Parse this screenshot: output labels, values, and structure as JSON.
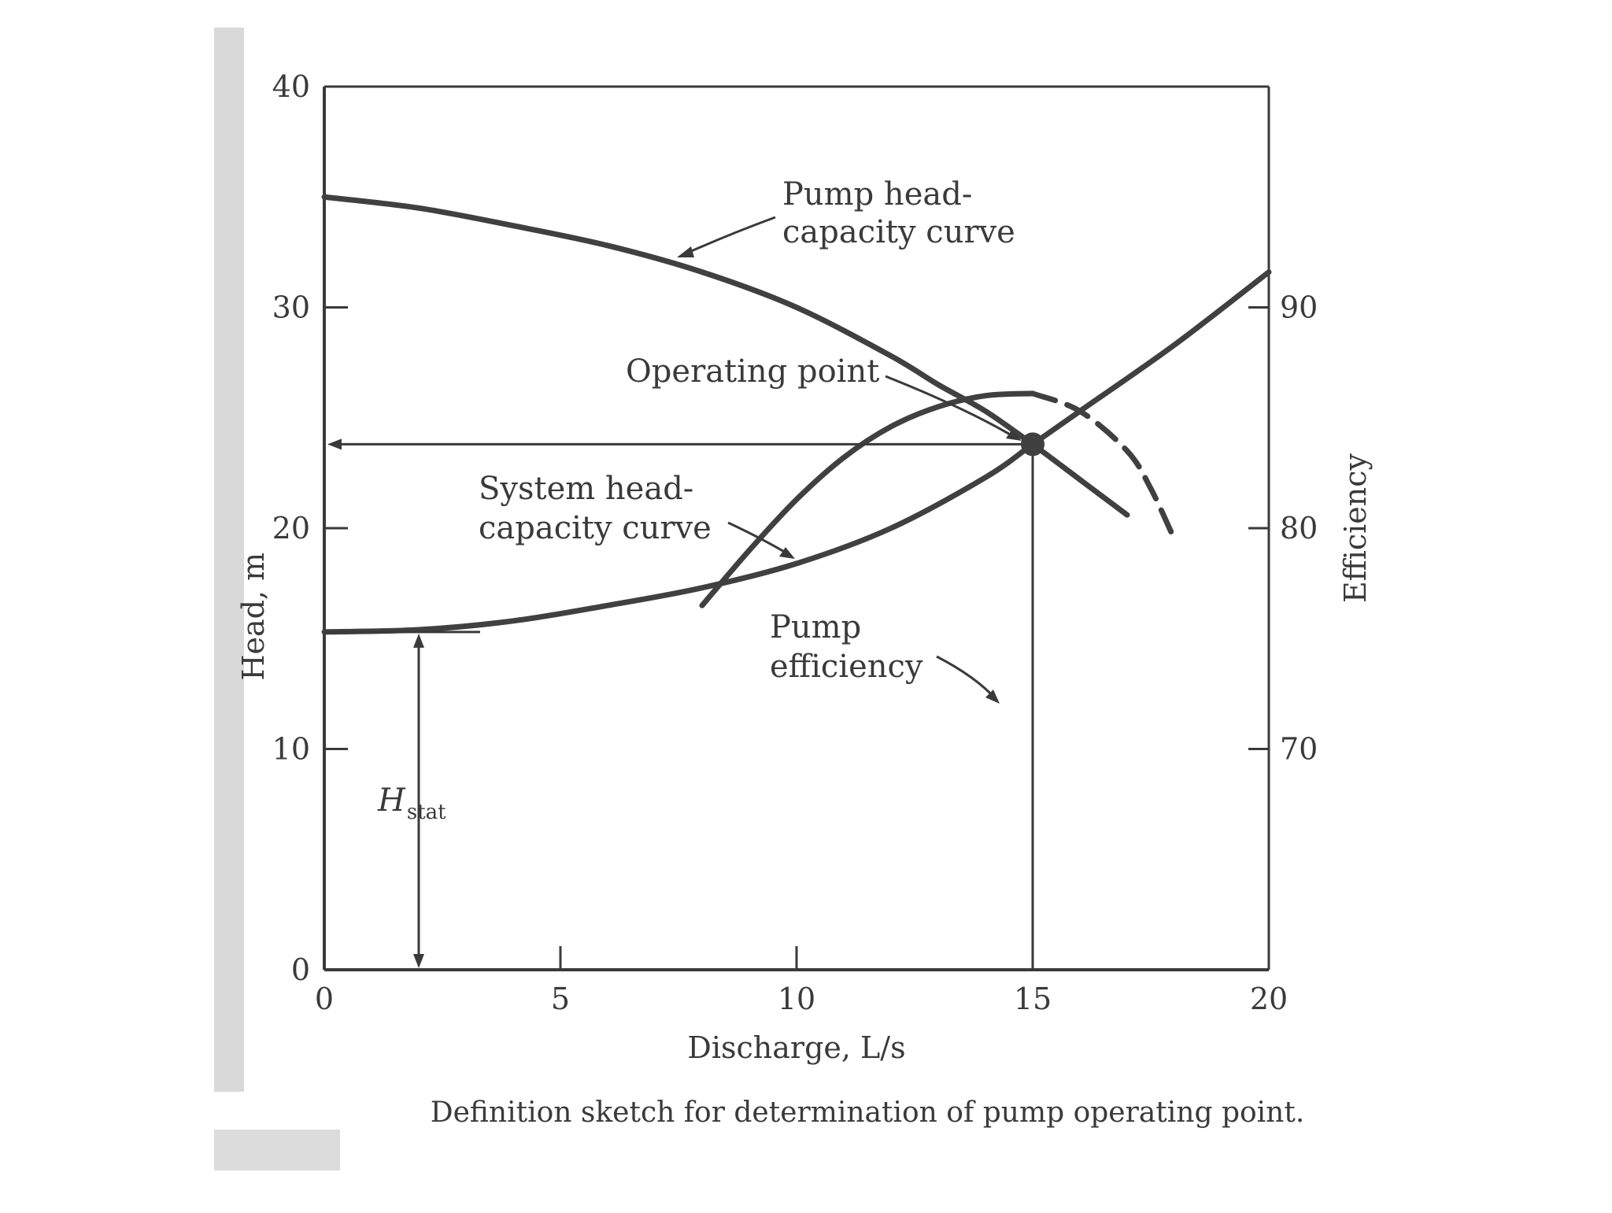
{
  "colors": {
    "ink": "#3a3a3a",
    "curve": "#404040",
    "page_shadow": "#d8d8d8",
    "background": "#ffffff"
  },
  "caption": "Definition sketch for determination of pump operating point.",
  "chart_data": {
    "type": "line",
    "xlabel": "Discharge, L/s",
    "ylabel": "Head, m",
    "y2label": "Efficiency",
    "xlim": [
      0,
      20
    ],
    "ylim": [
      0,
      40
    ],
    "y2lim": [
      60,
      100
    ],
    "x_ticks": [
      "0",
      "5",
      "10",
      "15",
      "20"
    ],
    "y_ticks": [
      "0",
      "10",
      "20",
      "30",
      "40"
    ],
    "y2_ticks": [
      "70",
      "80",
      "90"
    ],
    "grid": false,
    "series": [
      {
        "name": "Pump head-capacity curve",
        "axis": "left",
        "style": "solid",
        "x": [
          0,
          2,
          4,
          6,
          8,
          10,
          12,
          13,
          14,
          15,
          16,
          17
        ],
        "y": [
          35,
          34.5,
          33.7,
          32.8,
          31.6,
          30.0,
          27.8,
          26.5,
          25.3,
          23.8,
          22.2,
          20.6
        ]
      },
      {
        "name": "System head-capacity curve",
        "axis": "left",
        "style": "solid",
        "x": [
          0,
          2,
          4,
          6,
          8,
          10,
          12,
          14,
          15,
          16,
          18,
          20
        ],
        "y": [
          15.3,
          15.4,
          15.8,
          16.5,
          17.3,
          18.4,
          20.0,
          22.3,
          23.8,
          25.3,
          28.3,
          31.6
        ]
      },
      {
        "name": "Pump efficiency",
        "axis": "right",
        "style": "solid",
        "x": [
          8,
          9,
          10,
          11,
          12,
          13,
          14,
          15
        ],
        "y": [
          76.5,
          79.0,
          81.3,
          83.2,
          84.6,
          85.5,
          86.0,
          86.1
        ]
      },
      {
        "name": "Pump efficiency",
        "axis": "right",
        "style": "dashed",
        "x": [
          15,
          16,
          17,
          17.5,
          18
        ],
        "y": [
          86.1,
          85.3,
          83.5,
          81.8,
          79.5
        ]
      }
    ],
    "operating_point": {
      "x": 15,
      "y": 23.8
    },
    "h_stat": {
      "x": 2,
      "y": 15.3
    },
    "annotations": {
      "pump_curve": [
        "Pump head-",
        "capacity curve"
      ],
      "system_curve": [
        "System head-",
        "capacity curve"
      ],
      "efficiency": [
        "Pump",
        "efficiency"
      ],
      "operating_point": "Operating point",
      "h_stat_main": "H",
      "h_stat_sub": "stat"
    }
  }
}
